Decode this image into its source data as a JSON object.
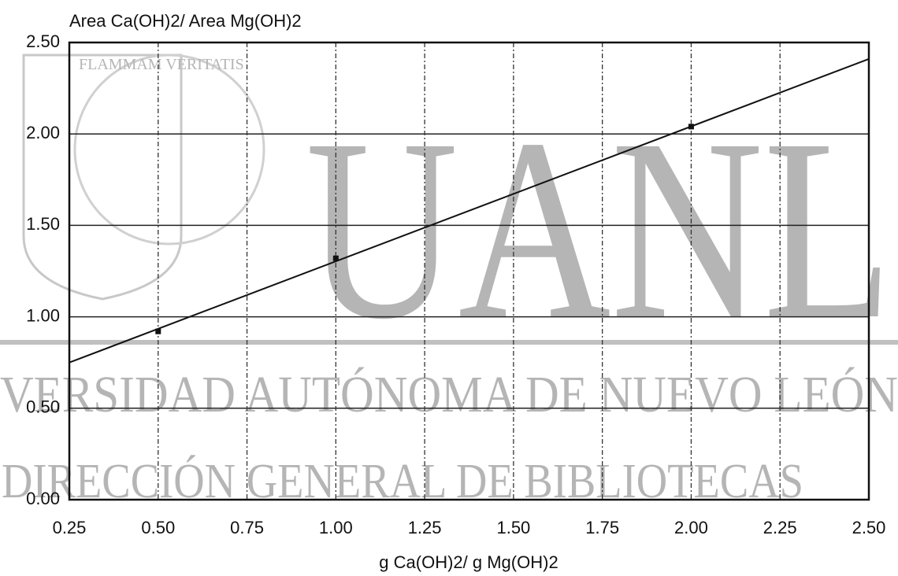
{
  "watermark": {
    "motto": "FLAMMAM VERITATIS",
    "logo": "UANL",
    "line1": "VERSIDAD AUTÓNOMA DE NUEVO LEÓN",
    "line2": "DIRECCIÓN GENERAL DE BIBLIOTECAS"
  },
  "chart_data": {
    "type": "scatter",
    "title": "Area Ca(OH)2/ Area Mg(OH)2",
    "x_label": "g Ca(OH)2/ g Mg(OH)2",
    "xlim": [
      0.25,
      2.5
    ],
    "ylim": [
      0,
      2.5
    ],
    "xticks": [
      {
        "value": 0.25,
        "label": "0.25"
      },
      {
        "value": 0.5,
        "label": "0.50"
      },
      {
        "value": 0.75,
        "label": "0.75"
      },
      {
        "value": 1,
        "label": "1.00"
      },
      {
        "value": 1.25,
        "label": "1.25"
      },
      {
        "value": 1.5,
        "label": "1.50"
      },
      {
        "value": 1.75,
        "label": "1.75"
      },
      {
        "value": 2,
        "label": "2.00"
      },
      {
        "value": 2.25,
        "label": "2.25"
      },
      {
        "value": 2.5,
        "label": "2.50"
      }
    ],
    "yticks": [
      {
        "value": 0,
        "label": "0.00"
      },
      {
        "value": 0.5,
        "label": "0.50"
      },
      {
        "value": 1,
        "label": "1.00"
      },
      {
        "value": 1.5,
        "label": "1.50"
      },
      {
        "value": 2,
        "label": "2.00"
      },
      {
        "value": 2.5,
        "label": "2.50"
      }
    ],
    "grid": true,
    "series": [
      {
        "type": "scatter",
        "color": "#111111",
        "x": [
          0.5,
          1,
          2
        ],
        "values": [
          0.92,
          1.32,
          2.04
        ]
      },
      {
        "type": "line",
        "color": "#111111",
        "x": [
          0.25,
          2.5
        ],
        "values": [
          0.75,
          2.41
        ]
      }
    ]
  }
}
